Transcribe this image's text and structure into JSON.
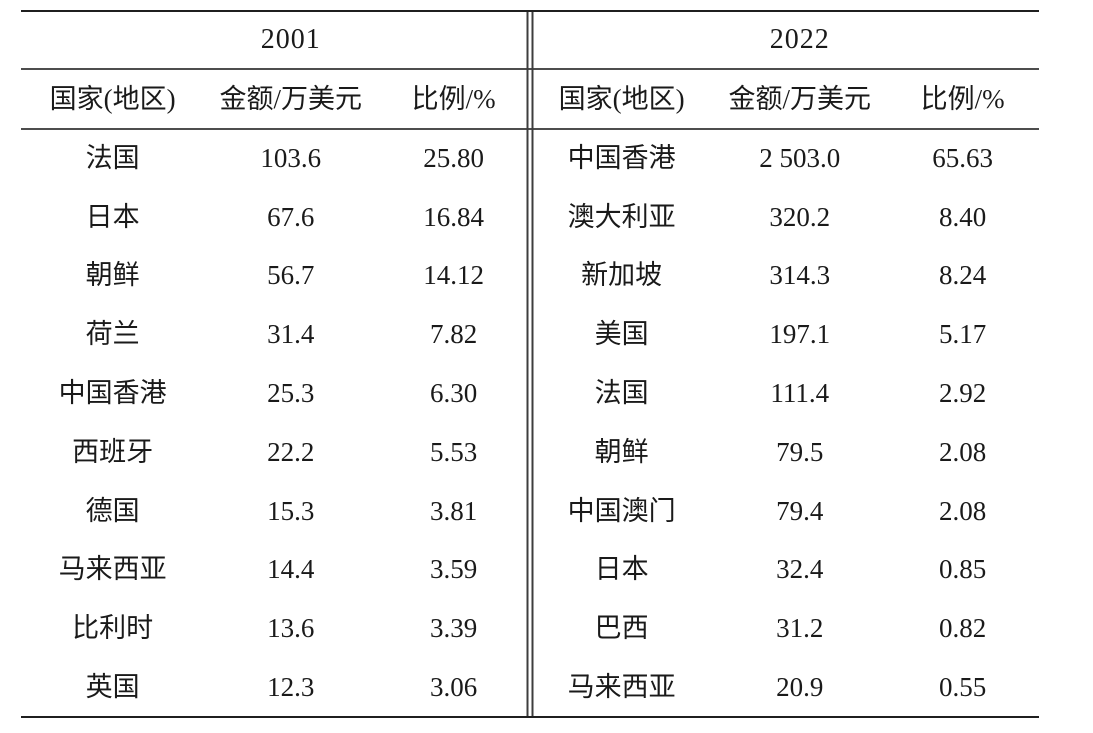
{
  "page": {
    "background": "#ffffff",
    "text_color": "#1a1a1a",
    "heavy_rule_color": "#1f1f1f",
    "thin_rule_color": "#4d4d4d"
  },
  "table": {
    "sections": [
      {
        "year": "2001",
        "columns": [
          "国家(地区)",
          "金额/万美元",
          "比例/%"
        ],
        "rows": [
          {
            "country": "法国",
            "amount": "103.6",
            "ratio": "25.80"
          },
          {
            "country": "日本",
            "amount": "67.6",
            "ratio": "16.84"
          },
          {
            "country": "朝鲜",
            "amount": "56.7",
            "ratio": "14.12"
          },
          {
            "country": "荷兰",
            "amount": "31.4",
            "ratio": "7.82"
          },
          {
            "country": "中国香港",
            "amount": "25.3",
            "ratio": "6.30"
          },
          {
            "country": "西班牙",
            "amount": "22.2",
            "ratio": "5.53"
          },
          {
            "country": "德国",
            "amount": "15.3",
            "ratio": "3.81"
          },
          {
            "country": "马来西亚",
            "amount": "14.4",
            "ratio": "3.59"
          },
          {
            "country": "比利时",
            "amount": "13.6",
            "ratio": "3.39"
          },
          {
            "country": "英国",
            "amount": "12.3",
            "ratio": "3.06"
          }
        ]
      },
      {
        "year": "2022",
        "columns": [
          "国家(地区)",
          "金额/万美元",
          "比例/%"
        ],
        "rows": [
          {
            "country": "中国香港",
            "amount": "2 503.0",
            "ratio": "65.63"
          },
          {
            "country": "澳大利亚",
            "amount": "320.2",
            "ratio": "8.40"
          },
          {
            "country": "新加坡",
            "amount": "314.3",
            "ratio": "8.24"
          },
          {
            "country": "美国",
            "amount": "197.1",
            "ratio": "5.17"
          },
          {
            "country": "法国",
            "amount": "111.4",
            "ratio": "2.92"
          },
          {
            "country": "朝鲜",
            "amount": "79.5",
            "ratio": "2.08"
          },
          {
            "country": "中国澳门",
            "amount": "79.4",
            "ratio": "2.08"
          },
          {
            "country": "日本",
            "amount": "32.4",
            "ratio": "0.85"
          },
          {
            "country": "巴西",
            "amount": "31.2",
            "ratio": "0.82"
          },
          {
            "country": "马来西亚",
            "amount": "20.9",
            "ratio": "0.55"
          }
        ]
      }
    ]
  },
  "chart_data": {
    "type": "table",
    "title": "",
    "panels": [
      {
        "year": "2001",
        "columns": [
          "国家(地区)",
          "金额/万美元",
          "比例/%"
        ],
        "rows": [
          [
            "法国",
            103.6,
            25.8
          ],
          [
            "日本",
            67.6,
            16.84
          ],
          [
            "朝鲜",
            56.7,
            14.12
          ],
          [
            "荷兰",
            31.4,
            7.82
          ],
          [
            "中国香港",
            25.3,
            6.3
          ],
          [
            "西班牙",
            22.2,
            5.53
          ],
          [
            "德国",
            15.3,
            3.81
          ],
          [
            "马来西亚",
            14.4,
            3.59
          ],
          [
            "比利时",
            13.6,
            3.39
          ],
          [
            "英国",
            12.3,
            3.06
          ]
        ]
      },
      {
        "year": "2022",
        "columns": [
          "国家(地区)",
          "金额/万美元",
          "比例/%"
        ],
        "rows": [
          [
            "中国香港",
            2503.0,
            65.63
          ],
          [
            "澳大利亚",
            320.2,
            8.4
          ],
          [
            "新加坡",
            314.3,
            8.24
          ],
          [
            "美国",
            197.1,
            5.17
          ],
          [
            "法国",
            111.4,
            2.92
          ],
          [
            "朝鲜",
            79.5,
            2.08
          ],
          [
            "中国澳门",
            79.4,
            2.08
          ],
          [
            "日本",
            32.4,
            0.85
          ],
          [
            "巴西",
            31.2,
            0.82
          ],
          [
            "马来西亚",
            20.9,
            0.55
          ]
        ]
      }
    ]
  }
}
